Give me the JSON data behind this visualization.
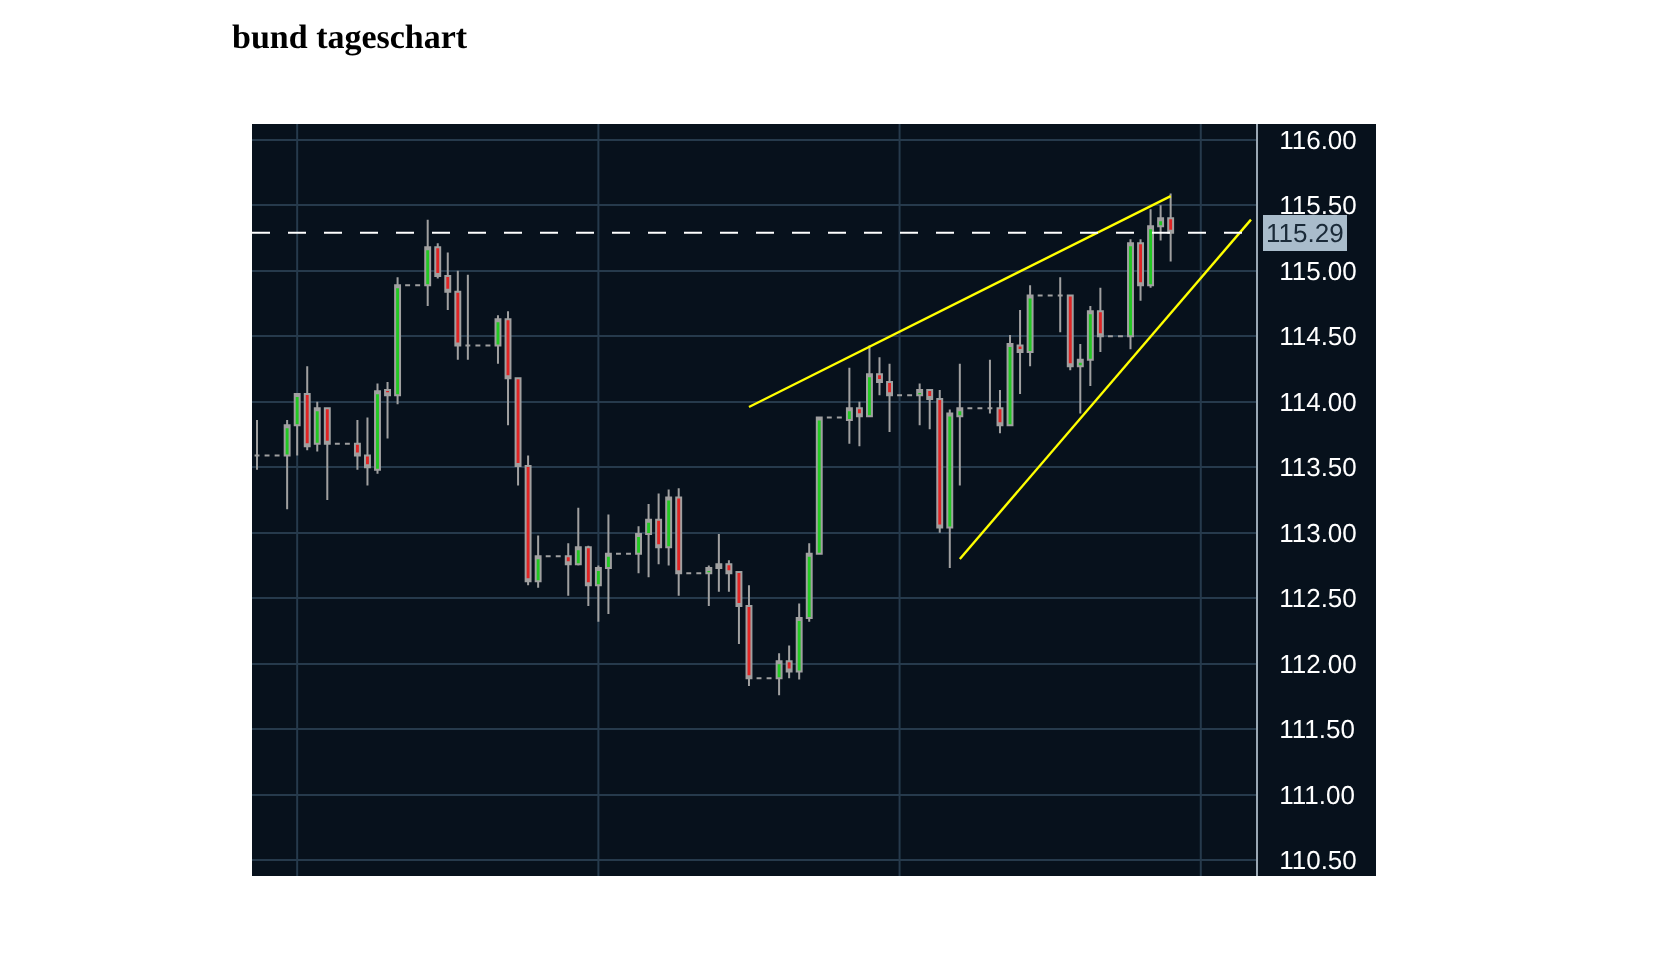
{
  "chart_data": {
    "type": "candlestick",
    "title": "bund tageschart",
    "categories": [
      null,
      null,
      null,
      null,
      null,
      null,
      null,
      null,
      null,
      null,
      null,
      null,
      null,
      null,
      null,
      null,
      null,
      null,
      null,
      null,
      null,
      null,
      null,
      null,
      null,
      null,
      null,
      null,
      null,
      null,
      null,
      null,
      null,
      null,
      null,
      null,
      null,
      null,
      null,
      null,
      null,
      null,
      null,
      null,
      null,
      null,
      null,
      null,
      null,
      null,
      null,
      null,
      null,
      null,
      null,
      null,
      null,
      null,
      null,
      null,
      null,
      null,
      null,
      null,
      null,
      null,
      null,
      null,
      null,
      null,
      null,
      null,
      null,
      null,
      null,
      null,
      null,
      null,
      null,
      null,
      null,
      null,
      null,
      null,
      null,
      null,
      null,
      null,
      null,
      null,
      null,
      null,
      null,
      null,
      null,
      null,
      null,
      null,
      null,
      null
    ],
    "ohlc": [
      [
        113.59,
        113.86,
        113.48,
        113.59
      ],
      [
        113.59,
        113.59,
        113.59,
        113.59
      ],
      [
        113.59,
        113.59,
        113.59,
        113.59
      ],
      [
        113.59,
        113.86,
        113.18,
        113.82
      ],
      [
        113.82,
        114.06,
        113.59,
        114.06
      ],
      [
        114.06,
        114.27,
        113.63,
        113.66
      ],
      [
        113.68,
        114.0,
        113.62,
        113.95
      ],
      [
        113.95,
        113.95,
        113.25,
        113.68
      ],
      [
        113.68,
        113.68,
        113.68,
        113.68
      ],
      [
        113.68,
        113.68,
        113.68,
        113.68
      ],
      [
        113.68,
        113.86,
        113.48,
        113.59
      ],
      [
        113.59,
        113.88,
        113.36,
        113.5
      ],
      [
        113.48,
        114.14,
        113.45,
        114.08
      ],
      [
        114.09,
        114.15,
        113.72,
        114.05
      ],
      [
        114.05,
        114.95,
        113.98,
        114.89
      ],
      [
        114.89,
        114.89,
        114.89,
        114.89
      ],
      [
        114.89,
        114.89,
        114.89,
        114.89
      ],
      [
        114.89,
        115.39,
        114.73,
        115.18
      ],
      [
        115.18,
        115.21,
        114.94,
        114.96
      ],
      [
        114.96,
        115.14,
        114.7,
        114.84
      ],
      [
        114.84,
        115.0,
        114.32,
        114.43
      ],
      [
        114.43,
        114.97,
        114.32,
        114.43
      ],
      [
        114.43,
        114.43,
        114.43,
        114.43
      ],
      [
        114.43,
        114.43,
        114.43,
        114.43
      ],
      [
        114.43,
        114.66,
        114.29,
        114.63
      ],
      [
        114.63,
        114.69,
        113.82,
        114.18
      ],
      [
        114.18,
        114.18,
        113.36,
        113.51
      ],
      [
        113.51,
        113.59,
        112.6,
        112.63
      ],
      [
        112.63,
        112.98,
        112.58,
        112.82
      ],
      [
        112.82,
        112.82,
        112.82,
        112.82
      ],
      [
        112.82,
        112.82,
        112.82,
        112.82
      ],
      [
        112.82,
        112.92,
        112.52,
        112.76
      ],
      [
        112.76,
        113.19,
        112.75,
        112.89
      ],
      [
        112.89,
        112.9,
        112.44,
        112.6
      ],
      [
        112.6,
        112.75,
        112.32,
        112.73
      ],
      [
        112.73,
        113.14,
        112.38,
        112.84
      ],
      [
        112.84,
        112.84,
        112.84,
        112.84
      ],
      [
        112.84,
        112.84,
        112.84,
        112.84
      ],
      [
        112.84,
        113.05,
        112.69,
        112.99
      ],
      [
        112.99,
        113.22,
        112.66,
        113.1
      ],
      [
        113.1,
        113.3,
        112.76,
        112.89
      ],
      [
        112.89,
        113.33,
        112.75,
        113.27
      ],
      [
        113.27,
        113.34,
        112.52,
        112.69
      ],
      [
        112.69,
        112.69,
        112.69,
        112.69
      ],
      [
        112.69,
        112.69,
        112.69,
        112.69
      ],
      [
        112.69,
        112.75,
        112.44,
        112.73
      ],
      [
        112.73,
        112.99,
        112.55,
        112.76
      ],
      [
        112.76,
        112.79,
        112.55,
        112.69
      ],
      [
        112.7,
        112.7,
        112.15,
        112.44
      ],
      [
        112.44,
        112.6,
        111.83,
        111.89
      ],
      [
        111.89,
        111.89,
        111.89,
        111.89
      ],
      [
        111.89,
        111.89,
        111.89,
        111.89
      ],
      [
        111.89,
        112.08,
        111.76,
        112.02
      ],
      [
        112.02,
        112.14,
        111.89,
        111.94
      ],
      [
        111.94,
        112.46,
        111.88,
        112.35
      ],
      [
        112.35,
        112.92,
        112.32,
        112.84
      ],
      [
        112.84,
        113.88,
        112.84,
        113.88
      ],
      [
        113.88,
        113.88,
        113.88,
        113.88
      ],
      [
        113.88,
        113.88,
        113.88,
        113.88
      ],
      [
        113.86,
        114.26,
        113.68,
        113.95
      ],
      [
        113.95,
        114.0,
        113.66,
        113.89
      ],
      [
        113.89,
        114.43,
        113.89,
        114.21
      ],
      [
        114.21,
        114.34,
        114.05,
        114.15
      ],
      [
        114.15,
        114.29,
        113.77,
        114.05
      ],
      [
        114.05,
        114.05,
        114.05,
        114.05
      ],
      [
        114.05,
        114.05,
        114.05,
        114.05
      ],
      [
        114.05,
        114.14,
        113.82,
        114.09
      ],
      [
        114.09,
        114.09,
        113.79,
        114.02
      ],
      [
        114.02,
        114.09,
        113.0,
        113.04
      ],
      [
        113.04,
        113.94,
        112.73,
        113.91
      ],
      [
        113.89,
        114.29,
        113.36,
        113.95
      ],
      [
        113.95,
        113.95,
        113.95,
        113.95
      ],
      [
        113.95,
        113.95,
        113.95,
        113.95
      ],
      [
        113.95,
        114.32,
        113.91,
        113.95
      ],
      [
        113.95,
        114.09,
        113.76,
        113.82
      ],
      [
        113.82,
        114.51,
        113.82,
        114.44
      ],
      [
        114.43,
        114.7,
        114.06,
        114.38
      ],
      [
        114.38,
        114.89,
        114.27,
        114.81
      ],
      [
        114.81,
        114.81,
        114.81,
        114.81
      ],
      [
        114.81,
        114.81,
        114.81,
        114.81
      ],
      [
        114.81,
        114.95,
        114.53,
        114.81
      ],
      [
        114.81,
        114.81,
        114.24,
        114.27
      ],
      [
        114.27,
        114.44,
        113.91,
        114.32
      ],
      [
        114.32,
        114.73,
        114.12,
        114.69
      ],
      [
        114.69,
        114.87,
        114.38,
        114.5
      ],
      [
        114.5,
        114.5,
        114.5,
        114.5
      ],
      [
        114.5,
        114.5,
        114.5,
        114.5
      ],
      [
        114.5,
        115.24,
        114.4,
        115.21
      ],
      [
        115.21,
        115.24,
        114.77,
        114.89
      ],
      [
        114.89,
        115.47,
        114.87,
        115.34
      ],
      [
        115.34,
        115.5,
        115.23,
        115.4
      ],
      [
        115.4,
        115.59,
        115.07,
        115.29
      ],
      null,
      null,
      null,
      null,
      null,
      null,
      null,
      null
    ],
    "colors": [
      "#a0a0a0",
      "#a0a0a0",
      "#a0a0a0",
      "#22c822",
      "#22c822",
      "#e02424",
      "#22c822",
      "#e02424",
      "#a0a0a0",
      "#a0a0a0",
      "#e02424",
      "#e02424",
      "#22c822",
      "#e02424",
      "#22c822",
      "#a0a0a0",
      "#a0a0a0",
      "#22c822",
      "#e02424",
      "#e02424",
      "#e02424",
      "#a0a0a0",
      "#a0a0a0",
      "#a0a0a0",
      "#22c822",
      "#e02424",
      "#e02424",
      "#e02424",
      "#22c822",
      "#a0a0a0",
      "#a0a0a0",
      "#e02424",
      "#22c822",
      "#e02424",
      "#22c822",
      "#22c822",
      "#a0a0a0",
      "#a0a0a0",
      "#22c822",
      "#22c822",
      "#e02424",
      "#22c822",
      "#e02424",
      "#a0a0a0",
      "#a0a0a0",
      "#22c822",
      "#a0a0a0",
      "#e02424",
      "#e02424",
      "#e02424",
      "#a0a0a0",
      "#a0a0a0",
      "#22c822",
      "#e02424",
      "#22c822",
      "#22c822",
      "#22c822",
      "#a0a0a0",
      "#a0a0a0",
      "#22c822",
      "#e02424",
      "#22c822",
      "#e02424",
      "#e02424",
      "#a0a0a0",
      "#a0a0a0",
      "#22c822",
      "#e02424",
      "#e02424",
      "#22c822",
      "#22c822",
      "#a0a0a0",
      "#a0a0a0",
      "#a0a0a0",
      "#e02424",
      "#22c822",
      "#e02424",
      "#22c822",
      "#a0a0a0",
      "#a0a0a0",
      "#a0a0a0",
      "#e02424",
      "#22c822",
      "#22c822",
      "#e02424",
      "#a0a0a0",
      "#a0a0a0",
      "#22c822",
      "#e02424",
      "#22c822",
      "#22c822",
      "#e02424",
      null,
      null,
      null,
      null,
      null,
      null,
      null,
      null
    ],
    "series": [
      {
        "type": "line",
        "color": "#ffff00",
        "values": [
          null,
          null,
          null,
          null,
          null,
          null,
          null,
          null,
          null,
          null,
          null,
          null,
          null,
          null,
          null,
          null,
          null,
          null,
          null,
          null,
          null,
          null,
          null,
          null,
          null,
          null,
          null,
          null,
          null,
          null,
          null,
          null,
          null,
          null,
          null,
          null,
          null,
          null,
          null,
          null,
          null,
          null,
          null,
          null,
          null,
          null,
          null,
          null,
          null,
          113.96,
          null,
          null,
          null,
          null,
          null,
          null,
          null,
          null,
          null,
          null,
          null,
          null,
          null,
          null,
          null,
          null,
          null,
          null,
          null,
          null,
          null,
          null,
          null,
          null,
          null,
          null,
          null,
          null,
          null,
          null,
          null,
          null,
          null,
          null,
          null,
          null,
          null,
          null,
          null,
          null,
          null,
          115.57,
          null,
          null,
          null,
          null,
          null,
          null,
          null,
          null
        ]
      },
      {
        "type": "line",
        "color": "#ffff00",
        "values": [
          null,
          null,
          null,
          null,
          null,
          null,
          null,
          null,
          null,
          null,
          null,
          null,
          null,
          null,
          null,
          null,
          null,
          null,
          null,
          null,
          null,
          null,
          null,
          null,
          null,
          null,
          null,
          null,
          null,
          null,
          null,
          null,
          null,
          null,
          null,
          null,
          null,
          null,
          null,
          null,
          null,
          null,
          null,
          null,
          null,
          null,
          null,
          null,
          null,
          null,
          null,
          null,
          null,
          null,
          null,
          null,
          null,
          null,
          null,
          null,
          null,
          null,
          null,
          null,
          null,
          null,
          null,
          null,
          null,
          null,
          112.8,
          null,
          null,
          null,
          null,
          null,
          null,
          null,
          null,
          null,
          null,
          null,
          null,
          null,
          null,
          null,
          null,
          null,
          null,
          null,
          null,
          null,
          null,
          null,
          null,
          null,
          null,
          null,
          null,
          115.39
        ]
      }
    ],
    "ylim": [
      110.38,
      116.12
    ],
    "yticks": [
      {
        "value": 110.5,
        "label": "110.50"
      },
      {
        "value": 111,
        "label": "111.00"
      },
      {
        "value": 111.5,
        "label": "111.50"
      },
      {
        "value": 112,
        "label": "112.00"
      },
      {
        "value": 112.5,
        "label": "112.50"
      },
      {
        "value": 113,
        "label": "113.00"
      },
      {
        "value": 113.5,
        "label": "113.50"
      },
      {
        "value": 114,
        "label": "114.00"
      },
      {
        "value": 114.5,
        "label": "114.50"
      },
      {
        "value": 115,
        "label": "115.00"
      },
      {
        "value": 115.5,
        "label": "115.50"
      },
      {
        "value": 116,
        "label": "116.00"
      }
    ],
    "ref_lines": [
      {
        "axis": "y",
        "value": 115.29,
        "label": "115.29",
        "color": "#ffffff",
        "line_style": "dashed"
      }
    ],
    "grid": true,
    "tick_labels": "y"
  }
}
